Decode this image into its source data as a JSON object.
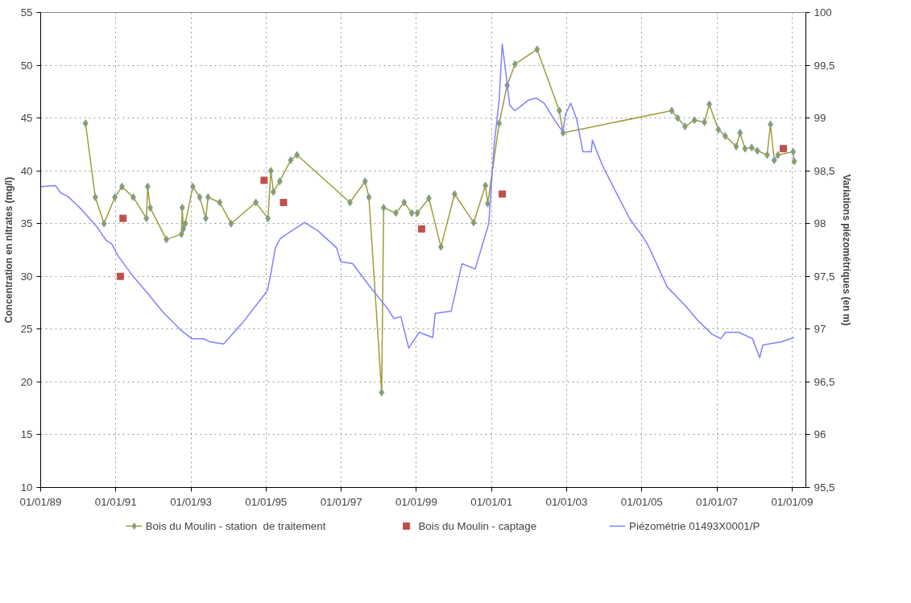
{
  "chart_data": {
    "type": "line",
    "ylabel": "Concentration en nitrates (mg/l)",
    "y2label": "Variations piézométriques (en m)",
    "xlim": [
      "1989-01-01",
      "2009-05-15"
    ],
    "xticks": [
      {
        "value": "1989-01-01",
        "label": "01/01/89"
      },
      {
        "value": "1991-01-01",
        "label": "01/01/91"
      },
      {
        "value": "1993-01-01",
        "label": "01/01/93"
      },
      {
        "value": "1995-01-01",
        "label": "01/01/95"
      },
      {
        "value": "1997-01-01",
        "label": "01/01/97"
      },
      {
        "value": "1999-01-01",
        "label": "01/01/99"
      },
      {
        "value": "2001-01-01",
        "label": "01/01/01"
      },
      {
        "value": "2003-01-01",
        "label": "01/01/03"
      },
      {
        "value": "2005-01-01",
        "label": "01/01/05"
      },
      {
        "value": "2007-01-01",
        "label": "01/01/07"
      },
      {
        "value": "2009-01-01",
        "label": "01/01/09"
      }
    ],
    "ylim": [
      10,
      55
    ],
    "yticks": [
      10,
      15,
      20,
      25,
      30,
      35,
      40,
      45,
      50,
      55
    ],
    "y2lim": [
      95.5,
      100
    ],
    "y2ticks": [
      {
        "value": 95.5,
        "label": "95,5"
      },
      {
        "value": 96,
        "label": "96"
      },
      {
        "value": 96.5,
        "label": "96,5"
      },
      {
        "value": 97,
        "label": "97"
      },
      {
        "value": 97.5,
        "label": "97,5"
      },
      {
        "value": 98,
        "label": "98"
      },
      {
        "value": 98.5,
        "label": "98,5"
      },
      {
        "value": 99,
        "label": "99"
      },
      {
        "value": 99.5,
        "label": "99,5"
      },
      {
        "value": 100,
        "label": "100"
      }
    ],
    "grid": true,
    "legend": "bottom",
    "series": [
      {
        "name": "Bois du Moulin - station  de traitement",
        "marker": "diamond",
        "color": "#9c9c3a",
        "x": [
          "1990-03-13",
          "1990-06-16",
          "1990-09-09",
          "1990-12-23",
          "1991-03-02",
          "1991-06-20",
          "1991-10-26",
          "1991-11-07",
          "1991-12-02",
          "1992-05-07",
          "1992-10-01",
          "1992-10-08",
          "1992-10-19",
          "1992-11-07",
          "1993-01-19",
          "1993-03-27",
          "1993-05-25",
          "1993-06-16",
          "1993-10-08",
          "1994-01-26",
          "1994-09-23",
          "1995-01-19",
          "1995-02-17",
          "1995-03-13",
          "1995-05-14",
          "1995-08-28",
          "1995-10-29",
          "1997-03-27",
          "1997-08-21",
          "1997-09-27",
          "1998-01-29",
          "1998-02-17",
          "1998-06-16",
          "1998-09-05",
          "1998-11-17",
          "1999-01-11",
          "1999-05-03",
          "1999-08-28",
          "2000-01-08",
          "2000-07-11",
          "2000-11-03",
          "2000-11-25",
          "2001-03-16",
          "2001-06-02",
          "2001-08-17",
          "2002-03-20",
          "2002-10-22",
          "2002-11-28",
          "2005-10-19",
          "2005-12-16",
          "2006-02-25",
          "2006-05-28",
          "2006-09-02",
          "2006-10-19",
          "2007-01-15",
          "2007-03-23",
          "2007-07-08",
          "2007-08-14",
          "2007-10-01",
          "2007-12-05",
          "2008-01-29",
          "2008-05-03",
          "2008-06-05",
          "2008-07-11",
          "2008-08-17",
          "2009-01-11",
          "2009-01-22"
        ],
        "values": [
          44.5,
          37.5,
          35.0,
          37.5,
          38.5,
          37.5,
          35.5,
          38.5,
          36.5,
          33.5,
          34.0,
          36.5,
          34.5,
          35.0,
          38.5,
          37.5,
          35.5,
          37.5,
          37.0,
          35.0,
          37.0,
          35.5,
          40.0,
          38.0,
          39.0,
          41.0,
          41.5,
          37.0,
          39.0,
          37.5,
          19.0,
          36.5,
          36.0,
          37.0,
          36.0,
          36.0,
          37.4,
          32.8,
          37.8,
          35.1,
          38.6,
          36.9,
          44.5,
          48.1,
          50.1,
          51.5,
          45.7,
          43.6,
          45.7,
          45.0,
          44.2,
          44.8,
          44.6,
          46.3,
          43.9,
          43.3,
          42.3,
          43.6,
          42.1,
          42.2,
          41.9,
          41.5,
          44.4,
          41.0,
          41.5,
          41.8,
          40.9
        ]
      },
      {
        "name": "Bois du Moulin - captage",
        "type": "scatter",
        "marker": "square",
        "color": "#c0504d",
        "x": [
          "1991-02-14",
          "1991-03-13",
          "1994-12-13",
          "1995-06-20",
          "1999-02-21",
          "2001-04-15",
          "2008-10-08"
        ],
        "values": [
          30.0,
          35.5,
          39.1,
          37.0,
          34.5,
          37.8,
          42.1
        ]
      },
      {
        "name": "Piézométrie 01493X0001/P",
        "type": "line",
        "marker": "none",
        "axis": "y2",
        "color": "#8080ff",
        "x": [
          "1989-01-04",
          "1989-05-25",
          "1989-07-15",
          "1989-09-20",
          "1990-01-26",
          "1990-07-01",
          "1990-10-01",
          "1990-11-21",
          "1991-01-26",
          "1991-06-27",
          "1991-11-07",
          "1992-03-27",
          "1992-09-13",
          "1993-01-08",
          "1993-05-03",
          "1993-07-04",
          "1993-11-14",
          "1994-05-25",
          "1994-11-25",
          "1995-01-15",
          "1995-02-10",
          "1995-04-01",
          "1995-05-21",
          "1995-09-05",
          "1996-01-11",
          "1996-05-21",
          "1996-11-17",
          "1996-12-27",
          "1997-04-22",
          "1997-09-23",
          "1998-03-23",
          "1998-05-28",
          "1998-08-03",
          "1998-10-19",
          "1999-01-29",
          "1999-06-09",
          "1999-07-04",
          "1999-12-05",
          "2000-03-20",
          "2000-07-26",
          "2000-10-11",
          "2000-12-05",
          "2001-01-26",
          "2001-03-16",
          "2001-04-15",
          "2001-05-21",
          "2001-06-27",
          "2001-08-17",
          "2001-12-27",
          "2002-03-13",
          "2002-05-28",
          "2002-09-13",
          "2002-11-25",
          "2002-12-23",
          "2003-02-10",
          "2003-04-08",
          "2003-06-09",
          "2003-08-28",
          "2003-09-09",
          "2003-12-20",
          "2004-04-29",
          "2004-09-09",
          "2005-01-15",
          "2005-03-05",
          "2005-09-05",
          "2006-03-02",
          "2006-07-11",
          "2006-11-17",
          "2007-02-07",
          "2007-03-27",
          "2007-08-03",
          "2007-12-13",
          "2008-02-21",
          "2008-03-23",
          "2008-09-23",
          "2009-01-19"
        ],
        "values": [
          98.35,
          98.36,
          98.29,
          98.26,
          98.14,
          97.97,
          97.84,
          97.81,
          97.69,
          97.49,
          97.34,
          97.17,
          97.0,
          96.91,
          96.91,
          96.88,
          96.86,
          97.07,
          97.3,
          97.37,
          97.49,
          97.77,
          97.86,
          97.93,
          98.01,
          97.93,
          97.77,
          97.64,
          97.62,
          97.42,
          97.2,
          97.1,
          97.12,
          96.82,
          96.97,
          96.92,
          97.15,
          97.17,
          97.62,
          97.57,
          97.82,
          98.0,
          98.74,
          99.17,
          99.7,
          99.42,
          99.12,
          99.07,
          99.17,
          99.19,
          99.14,
          98.97,
          98.87,
          99.04,
          99.14,
          98.99,
          98.68,
          98.68,
          98.79,
          98.54,
          98.29,
          98.04,
          97.87,
          97.79,
          97.4,
          97.22,
          97.07,
          96.95,
          96.91,
          96.97,
          96.97,
          96.91,
          96.73,
          96.85,
          96.88,
          96.92
        ]
      }
    ]
  }
}
